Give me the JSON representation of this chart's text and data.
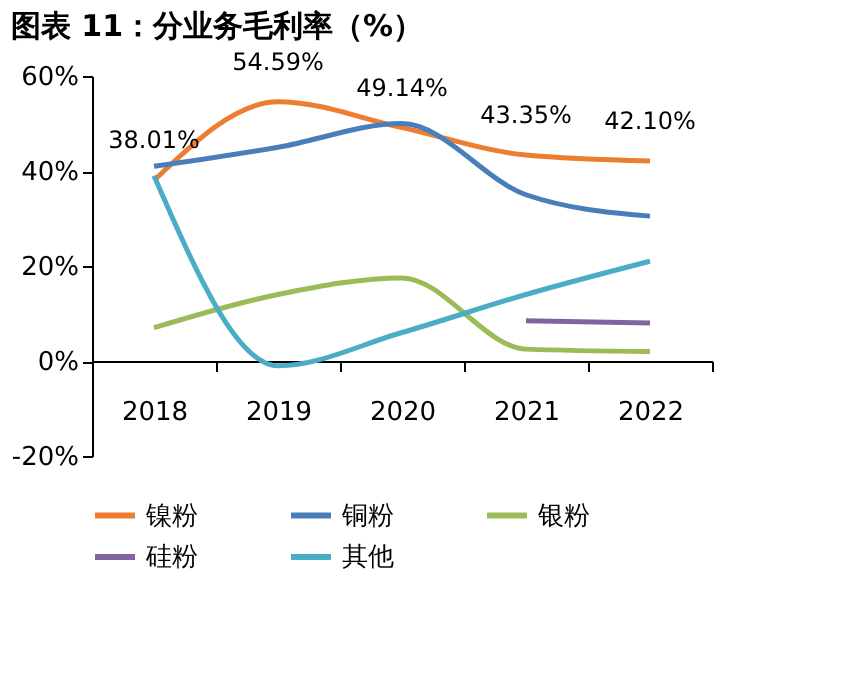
{
  "chart_data": {
    "type": "line",
    "title": "图表 11：分业务毛利率（%）",
    "categories": [
      "2018",
      "2019",
      "2020",
      "2021",
      "2022"
    ],
    "series": [
      {
        "name": "镍粉",
        "color": "#ed7d31",
        "values": [
          38.01,
          54.59,
          49.14,
          43.35,
          42.1
        ],
        "value_labels": [
          "38.01%",
          "54.59%",
          "49.14%",
          "43.35%",
          "42.10%"
        ]
      },
      {
        "name": "铜粉",
        "color": "#4a7ebb",
        "values": [
          41,
          45,
          50,
          35,
          30.5
        ]
      },
      {
        "name": "银粉",
        "color": "#9bbb59",
        "values": [
          7,
          14,
          17.5,
          2.5,
          2
        ]
      },
      {
        "name": "硅粉",
        "color": "#8064a2",
        "values": [
          null,
          null,
          null,
          8.5,
          8
        ]
      },
      {
        "name": "其他",
        "color": "#4bacc6",
        "values": [
          39,
          -1,
          6,
          14,
          21
        ]
      }
    ],
    "ylim": [
      -20,
      60
    ],
    "yticks": [
      {
        "value": -20,
        "label": "-20%"
      },
      {
        "value": 0,
        "label": "0%"
      },
      {
        "value": 20,
        "label": "20%"
      },
      {
        "value": 40,
        "label": "40%"
      },
      {
        "value": 60,
        "label": "60%"
      }
    ],
    "legend": "bottom",
    "grid": false,
    "marker": "none",
    "line_style": "solid"
  }
}
